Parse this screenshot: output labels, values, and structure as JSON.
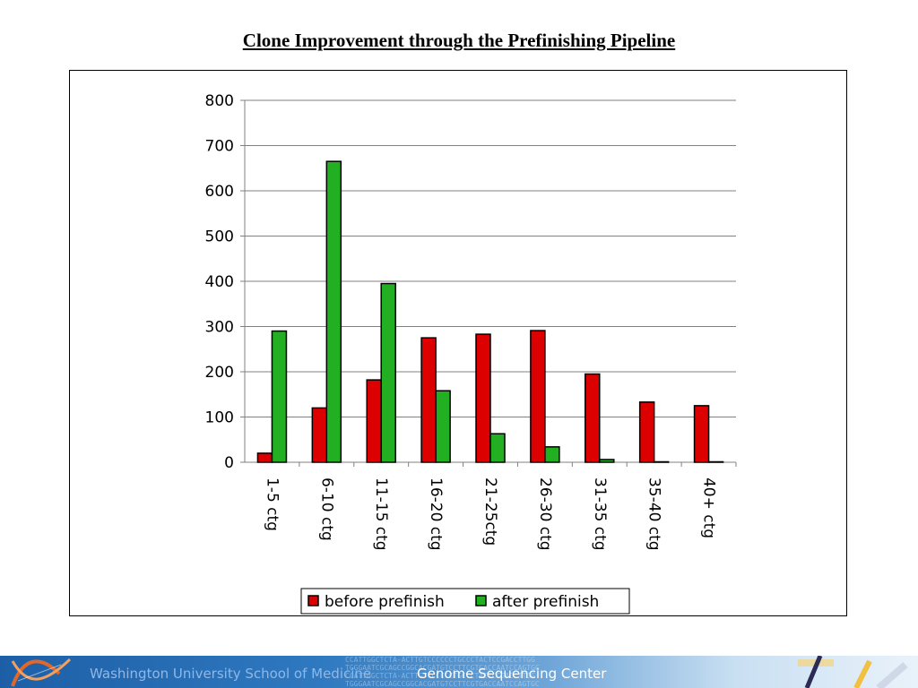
{
  "slide": {
    "title": "Clone Improvement through the Prefinishing Pipeline"
  },
  "footer": {
    "institution": "Washington University School of Medicine",
    "center": "Genome Sequencing Center",
    "sequence_text": "CCATTGGCTCTA-ACTTGTCCCCCCTGCCCTACTCCGACCTTGG\nTGGGAATCGCAGCCGGCACGATGTCCTTCGTGACCAATCCAGTGC\nCCATTGGCTCTA-ACTTGTCCCCCCTGCCCTACTCCGACCTTGG\nTGGGAATCGCAGCCGGCACGATGTCCTTCGTGACCAATCCAGTGC"
  },
  "colors": {
    "before": "#dd0000",
    "after": "#22b022",
    "gridline": "#808080",
    "axis": "#808080"
  },
  "chart_data": {
    "type": "bar",
    "title": "",
    "xlabel": "",
    "ylabel": "",
    "ylim": [
      0,
      800
    ],
    "yticks": [
      0,
      100,
      200,
      300,
      400,
      500,
      600,
      700,
      800
    ],
    "grid": true,
    "legend_position": "bottom",
    "categories": [
      "1-5 ctg",
      "6-10 ctg",
      "11-15 ctg",
      "16-20 ctg",
      "21-25ctg",
      "26-30 ctg",
      "31-35 ctg",
      "35-40 ctg",
      "40+ ctg"
    ],
    "series": [
      {
        "name": "before prefinish",
        "values": [
          20,
          120,
          182,
          275,
          283,
          291,
          195,
          133,
          125
        ]
      },
      {
        "name": "after prefinish",
        "values": [
          290,
          665,
          395,
          158,
          63,
          34,
          6,
          1,
          1
        ]
      }
    ]
  }
}
